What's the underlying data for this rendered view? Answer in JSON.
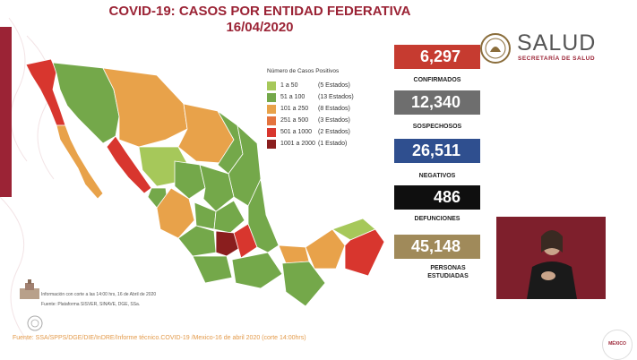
{
  "title": {
    "line1": "COVID-19: CASOS POR ENTIDAD FEDERATIVA",
    "line2": "16/04/2020"
  },
  "logo": {
    "word": "SALUD",
    "sub": "SECRETARÍA DE SALUD",
    "icon": "mexico-seal-icon"
  },
  "legend": {
    "title": "Número de Casos Positivos",
    "items": [
      {
        "range": "1 a 50",
        "states": "(5 Estados)",
        "color": "#a6c85a"
      },
      {
        "range": "51 a 100",
        "states": "(13 Estados)",
        "color": "#74a84a"
      },
      {
        "range": "101 a 250",
        "states": "(8 Estados)",
        "color": "#e8a24a"
      },
      {
        "range": "251 a 500",
        "states": "(3 Estados)",
        "color": "#e4733e"
      },
      {
        "range": "501 a 1000",
        "states": "(2 Estados)",
        "color": "#d8362e"
      },
      {
        "range": "1001 a 2000",
        "states": "(1 Estado)",
        "color": "#8a1e1e"
      }
    ]
  },
  "stats": [
    {
      "value": "6,297",
      "label": "CONFIRMADOS",
      "color": "#c63b30"
    },
    {
      "value": "12,340",
      "label": "SOSPECHOSOS",
      "color": "#6e6e6e"
    },
    {
      "value": "26,511",
      "label": "NEGATIVOS",
      "color": "#2f4f8f"
    },
    {
      "value": "486",
      "label": "DEFUNCIONES",
      "color": "#0f0f0f"
    },
    {
      "value": "45,148",
      "label": "PERSONAS ESTUDIADAS",
      "color": "#a08a5a"
    }
  ],
  "footnote": "Información con corte a las 14:00 hrs, 16 de Abril de 2020",
  "footnote2": "Fuente: Plataforma SISVER, SINAVE, DGE, SSa.",
  "source": "Fuente: SSA/SPPS/DGE/DIE/InDRE/Informe técnico.COVID-19 /Mexico-16 de abril 2020 (corte 14:00hrs)",
  "badge": "MÉXICO"
}
